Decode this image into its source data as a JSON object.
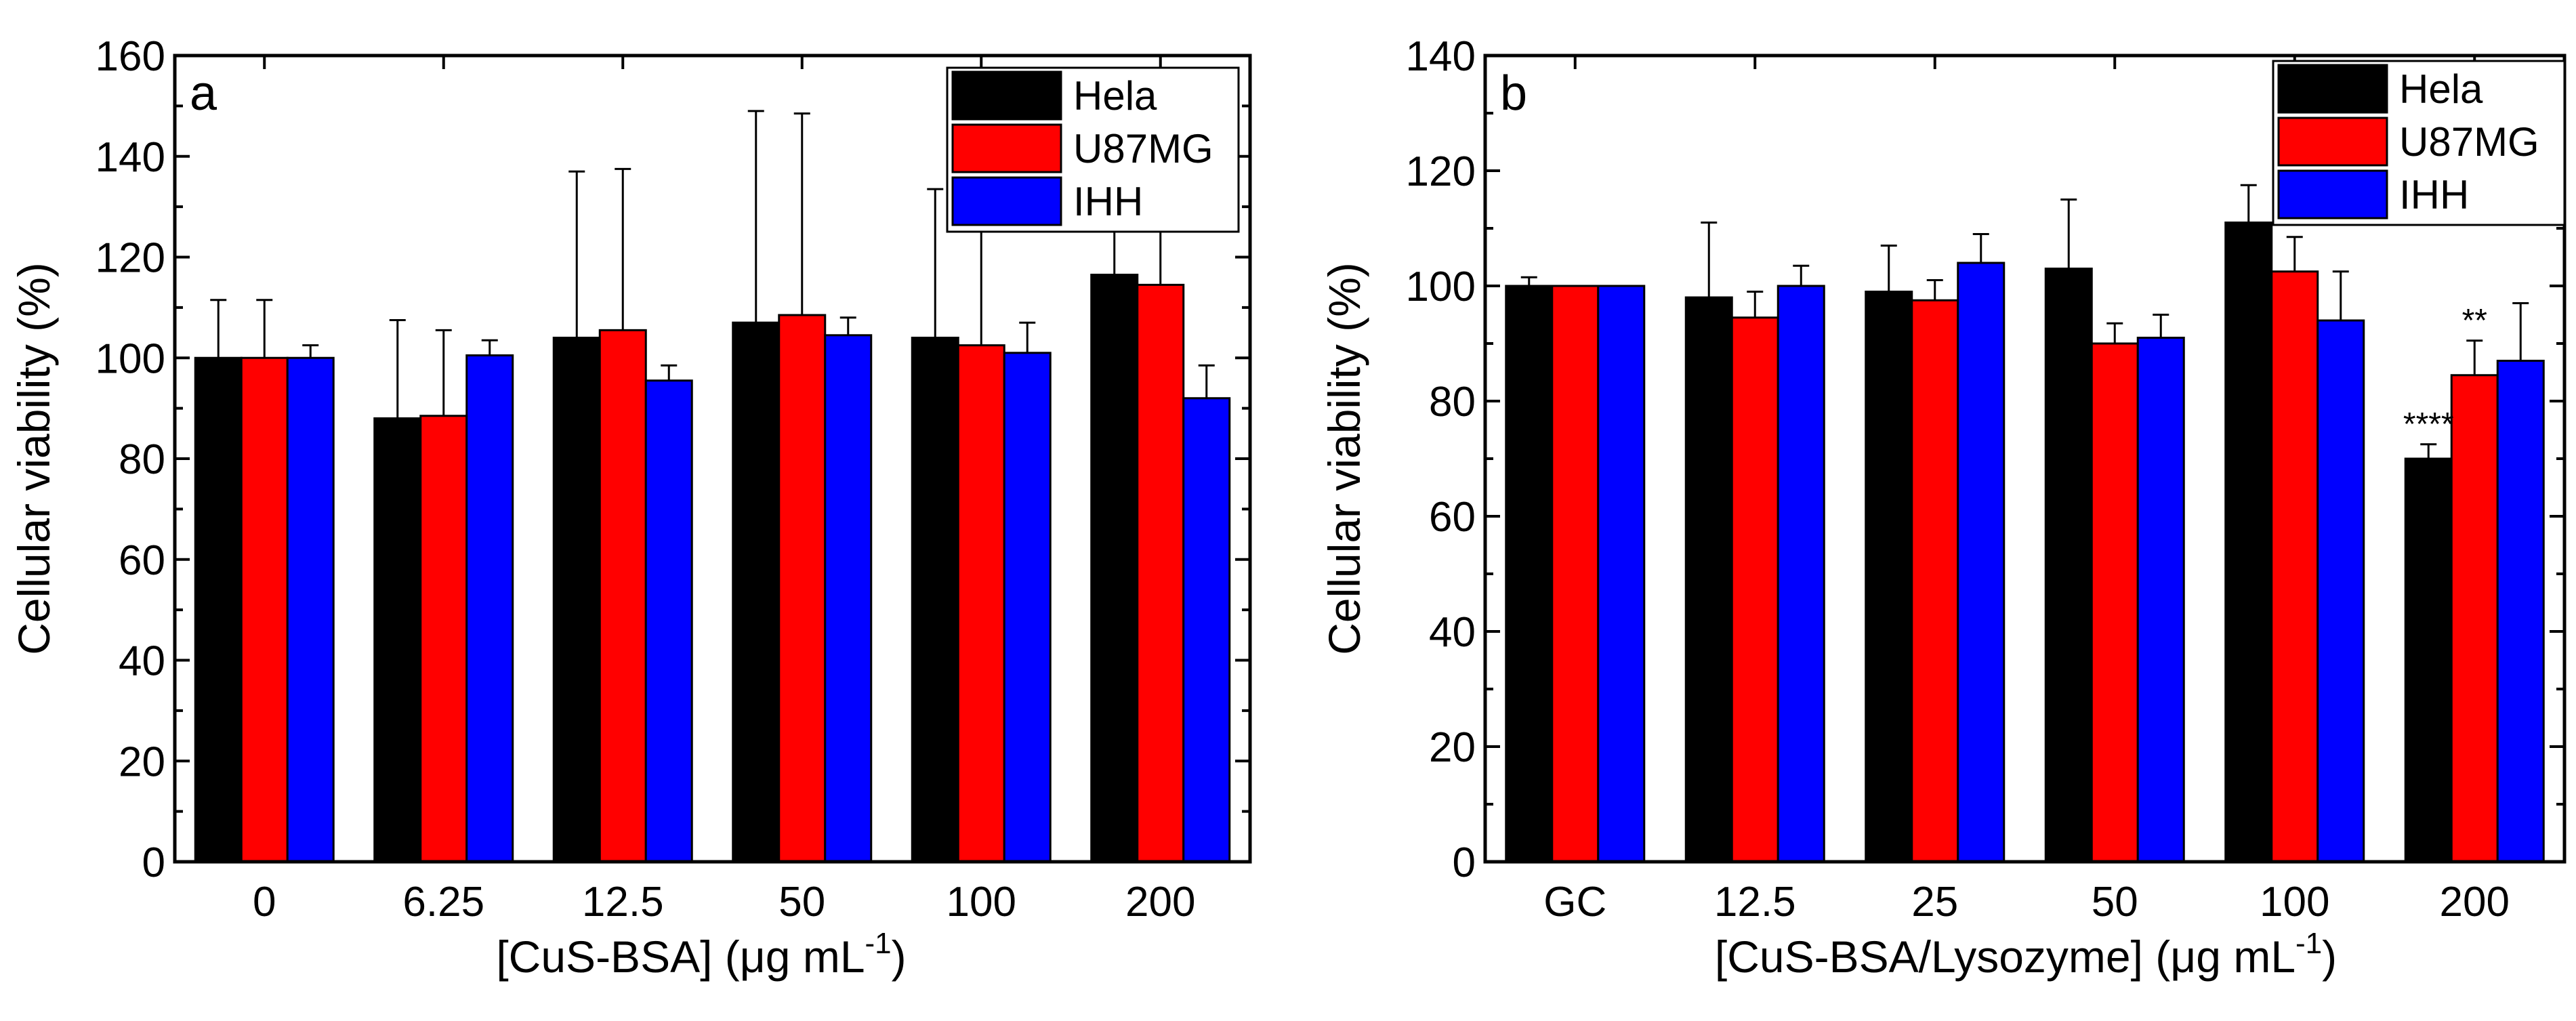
{
  "chart_data": [
    {
      "type": "bar",
      "panel_label": "a",
      "xlabel": "[CuS-BSA] (μg mL",
      "xlabel_sup": "-1",
      "xlabel_end": ")",
      "ylabel": "Cellular viability (%)",
      "ylim": [
        0,
        160
      ],
      "yticks": [
        "0",
        "20",
        "40",
        "60",
        "80",
        "100",
        "120",
        "140",
        "160"
      ],
      "categories": [
        "0",
        "6.25",
        "12.5",
        "50",
        "100",
        "200"
      ],
      "legend_position": "top-right",
      "series": [
        {
          "name": "Hela",
          "color": "#000000",
          "values": [
            100,
            88,
            104,
            107,
            104,
            116.5
          ],
          "errors": [
            11.5,
            19.5,
            33,
            42,
            29.5,
            19
          ]
        },
        {
          "name": "U87MG",
          "color": "#ff0000",
          "values": [
            100,
            88.5,
            105.5,
            108.5,
            102.5,
            114.5
          ],
          "errors": [
            11.5,
            17,
            32,
            40,
            30,
            37.5
          ]
        },
        {
          "name": "IHH",
          "color": "#0000ff",
          "values": [
            100,
            100.5,
            95.5,
            104.5,
            101,
            92
          ],
          "errors": [
            2.5,
            3,
            3,
            3.5,
            6,
            6.5
          ]
        }
      ],
      "annotations": []
    },
    {
      "type": "bar",
      "panel_label": "b",
      "xlabel": "[CuS-BSA/Lysozyme] (μg mL",
      "xlabel_sup": "-1",
      "xlabel_end": ")",
      "ylabel": "Cellular viability (%)",
      "ylim": [
        0,
        140
      ],
      "yticks": [
        "0",
        "20",
        "40",
        "60",
        "80",
        "100",
        "120",
        "140"
      ],
      "categories": [
        "GC",
        "12.5",
        "25",
        "50",
        "100",
        "200"
      ],
      "legend_position": "top-right",
      "series": [
        {
          "name": "Hela",
          "color": "#000000",
          "values": [
            100,
            98,
            99,
            103,
            111,
            70
          ],
          "errors": [
            1.5,
            13,
            8,
            12,
            6.5,
            2.5
          ]
        },
        {
          "name": "U87MG",
          "color": "#ff0000",
          "values": [
            100,
            94.5,
            97.5,
            90,
            102.5,
            84.5
          ],
          "errors": [
            0,
            4.5,
            3.5,
            3.5,
            6,
            6
          ]
        },
        {
          "name": "IHH",
          "color": "#0000ff",
          "values": [
            100,
            100,
            104,
            91,
            94,
            87
          ],
          "errors": [
            0,
            3.5,
            5,
            4,
            8.5,
            10
          ]
        }
      ],
      "annotations": [
        {
          "text": "****",
          "category": "200",
          "series": "Hela"
        },
        {
          "text": "**",
          "category": "200",
          "series": "U87MG"
        }
      ]
    }
  ]
}
